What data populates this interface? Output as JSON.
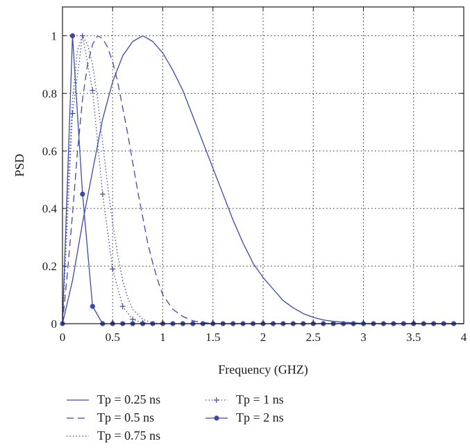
{
  "chart_data": {
    "type": "line",
    "xlabel": "Frequency (GHZ)",
    "ylabel": "PSD",
    "xlim": [
      0,
      4
    ],
    "ylim": [
      0,
      1.1
    ],
    "xticks": [
      0,
      0.5,
      1,
      1.5,
      2,
      2.5,
      3,
      3.5,
      4
    ],
    "yticks": [
      0,
      0.2,
      0.4,
      0.6,
      0.8,
      1
    ],
    "xtick_labels": [
      "0",
      "0.5",
      "1",
      "1.5",
      "2",
      "2.5",
      "3",
      "3.5",
      "4"
    ],
    "ytick_labels": [
      "0",
      "0.2",
      "0.4",
      "0.6",
      "0.8",
      "1"
    ],
    "grid": true,
    "legend_position": "bottom",
    "line_color": "#3b49a8",
    "series": [
      {
        "name": "Tp = 0.25 ns",
        "style": "solid",
        "marker": "none",
        "x": [
          0,
          0.1,
          0.2,
          0.3,
          0.4,
          0.5,
          0.6,
          0.7,
          0.8,
          0.9,
          1.0,
          1.1,
          1.2,
          1.3,
          1.4,
          1.5,
          1.6,
          1.7,
          1.8,
          1.9,
          2.0,
          2.1,
          2.2,
          2.3,
          2.4,
          2.5,
          2.6,
          2.7,
          2.8,
          2.9,
          3.0,
          3.2,
          3.4,
          3.6,
          3.8,
          4.0
        ],
        "y": [
          0,
          0.15,
          0.35,
          0.53,
          0.71,
          0.84,
          0.93,
          0.98,
          1.0,
          0.98,
          0.94,
          0.88,
          0.81,
          0.72,
          0.63,
          0.54,
          0.45,
          0.36,
          0.28,
          0.21,
          0.16,
          0.12,
          0.08,
          0.055,
          0.035,
          0.022,
          0.013,
          0.008,
          0.005,
          0.003,
          0.001,
          0,
          0,
          0,
          0,
          0
        ]
      },
      {
        "name": "Tp = 0.5 ns",
        "style": "dashed",
        "marker": "none",
        "x": [
          0,
          0.05,
          0.1,
          0.15,
          0.2,
          0.25,
          0.3,
          0.35,
          0.4,
          0.45,
          0.5,
          0.55,
          0.6,
          0.65,
          0.7,
          0.75,
          0.8,
          0.85,
          0.9,
          0.95,
          1.0,
          1.1,
          1.2,
          1.3,
          1.4,
          1.5,
          1.6,
          1.8,
          2.0,
          4.0
        ],
        "y": [
          0,
          0.18,
          0.38,
          0.6,
          0.78,
          0.9,
          0.97,
          1.0,
          0.99,
          0.96,
          0.91,
          0.84,
          0.75,
          0.66,
          0.56,
          0.46,
          0.37,
          0.28,
          0.21,
          0.15,
          0.1,
          0.05,
          0.025,
          0.01,
          0.004,
          0.001,
          0,
          0,
          0,
          0
        ]
      },
      {
        "name": "Tp = 0.75 ns",
        "style": "dotted",
        "marker": "none",
        "x": [
          0,
          0.05,
          0.1,
          0.15,
          0.2,
          0.25,
          0.3,
          0.35,
          0.4,
          0.45,
          0.5,
          0.55,
          0.6,
          0.65,
          0.7,
          0.8,
          0.9,
          1.0,
          1.2,
          4.0
        ],
        "y": [
          0,
          0.45,
          0.78,
          0.95,
          1.0,
          0.97,
          0.9,
          0.78,
          0.63,
          0.48,
          0.35,
          0.24,
          0.15,
          0.09,
          0.05,
          0.015,
          0.003,
          0,
          0,
          0
        ]
      },
      {
        "name": "Tp = 1 ns",
        "style": "dotted",
        "marker": "plus",
        "x": [
          0,
          0.1,
          0.2,
          0.3,
          0.4,
          0.5,
          0.6,
          0.7,
          0.8,
          0.9,
          1.0,
          1.1,
          1.2,
          1.3,
          1.4,
          1.5,
          1.6,
          1.7,
          1.8,
          1.9,
          2.0,
          2.1,
          2.2,
          2.3,
          2.4,
          2.5,
          2.6,
          2.7,
          2.8,
          2.9,
          3.0,
          3.1,
          3.2,
          3.3,
          3.4,
          3.5,
          3.6,
          3.7,
          3.8,
          3.9
        ],
        "y": [
          0,
          0.73,
          1.0,
          0.81,
          0.45,
          0.19,
          0.06,
          0.015,
          0.003,
          0,
          0,
          0,
          0,
          0,
          0,
          0,
          0,
          0,
          0,
          0,
          0,
          0,
          0,
          0,
          0,
          0,
          0,
          0,
          0,
          0,
          0,
          0,
          0,
          0,
          0,
          0,
          0,
          0,
          0,
          0
        ]
      },
      {
        "name": "Tp = 2 ns",
        "style": "solid",
        "marker": "dot",
        "x": [
          0,
          0.1,
          0.2,
          0.3,
          0.4,
          0.5,
          0.6,
          0.7,
          0.8,
          0.9,
          1.0,
          1.1,
          1.2,
          1.3,
          1.4,
          1.5,
          1.6,
          1.7,
          1.8,
          1.9,
          2.0,
          2.1,
          2.2,
          2.3,
          2.4,
          2.5,
          2.6,
          2.7,
          2.8,
          2.9,
          3.0,
          3.1,
          3.2,
          3.3,
          3.4,
          3.5,
          3.6,
          3.7,
          3.8,
          3.9
        ],
        "y": [
          0,
          1.0,
          0.45,
          0.06,
          0,
          0,
          0,
          0,
          0,
          0,
          0,
          0,
          0,
          0,
          0,
          0,
          0,
          0,
          0,
          0,
          0,
          0,
          0,
          0,
          0,
          0,
          0,
          0,
          0,
          0,
          0,
          0,
          0,
          0,
          0,
          0,
          0,
          0,
          0,
          0
        ]
      }
    ]
  }
}
